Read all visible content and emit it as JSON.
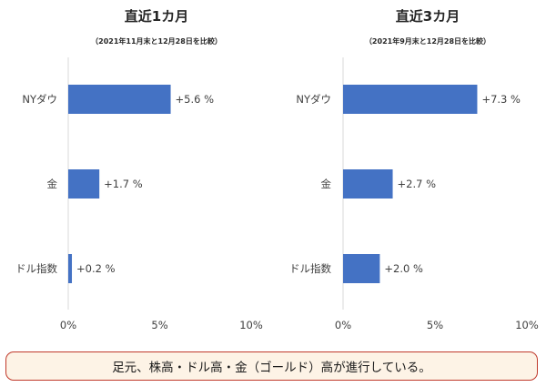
{
  "chart_data": [
    {
      "type": "bar",
      "orientation": "horizontal",
      "title": "直近1カ月",
      "subtitle": "（2021年11月末と12月28日を比較）",
      "categories": [
        "NYダウ",
        "金",
        "ドル指数"
      ],
      "values": [
        5.6,
        1.7,
        0.2
      ],
      "data_labels": [
        "+5.6 %",
        "+1.7 %",
        "+0.2 %"
      ],
      "xlim": [
        0,
        10
      ],
      "xticks": [
        "0%",
        "5%",
        "10%"
      ],
      "grid": "vertical line at 0 only",
      "bar_color": "#4472c4"
    },
    {
      "type": "bar",
      "orientation": "horizontal",
      "title": "直近3カ月",
      "subtitle": "（2021年9月末と12月28日を比較）",
      "categories": [
        "NYダウ",
        "金",
        "ドル指数"
      ],
      "values": [
        7.3,
        2.7,
        2.0
      ],
      "data_labels": [
        "+7.3 %",
        "+2.7 %",
        "+2.0 %"
      ],
      "xlim": [
        0,
        10
      ],
      "xticks": [
        "0%",
        "5%",
        "10%"
      ],
      "grid": "vertical line at 0 only",
      "bar_color": "#4472c4"
    }
  ],
  "summary": "足元、株高・ドル高・金（ゴールド）高が進行している。",
  "colors": {
    "bar": "#4472c4",
    "box_border": "#c0392b",
    "box_fill": "#fdf3e6"
  }
}
